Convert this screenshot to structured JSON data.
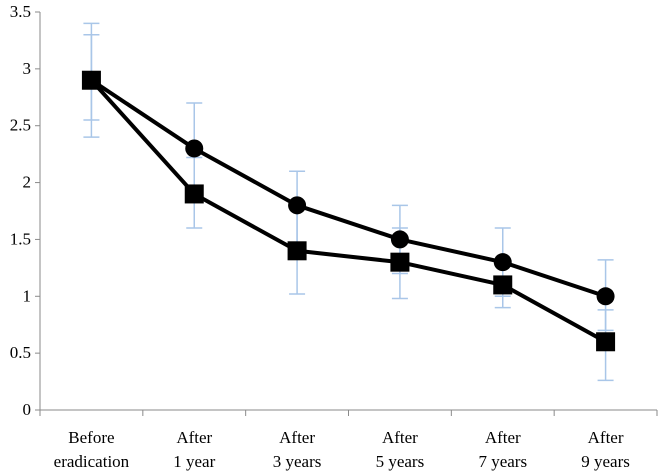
{
  "chart_data": {
    "type": "line",
    "categories": [
      [
        "Before",
        "eradication"
      ],
      [
        "After",
        "1 year"
      ],
      [
        "After",
        "3 years"
      ],
      [
        "After",
        "5 years"
      ],
      [
        "After",
        "7 years"
      ],
      [
        "After",
        "9 years"
      ]
    ],
    "ylim": [
      0,
      3.5
    ],
    "yticks": [
      0,
      0.5,
      1,
      1.5,
      2,
      2.5,
      3,
      3.5
    ],
    "ytick_labels": [
      "0",
      "0.5",
      "1",
      "1.5",
      "2",
      "2.5",
      "3",
      "3.5"
    ],
    "title": "",
    "xlabel": "",
    "ylabel": "",
    "grid": false,
    "legend": "none",
    "series": [
      {
        "marker": "circle",
        "values": [
          2.9,
          2.3,
          1.8,
          1.5,
          1.3,
          1.0
        ],
        "error_low": [
          2.4,
          1.9,
          1.4,
          1.2,
          1.0,
          0.7
        ],
        "error_high": [
          3.4,
          2.7,
          2.1,
          1.8,
          1.6,
          1.32
        ]
      },
      {
        "marker": "square",
        "values": [
          2.9,
          1.9,
          1.4,
          1.3,
          1.1,
          0.6
        ],
        "error_low": [
          2.55,
          1.6,
          1.02,
          0.98,
          0.9,
          0.26
        ],
        "error_high": [
          3.3,
          2.22,
          1.8,
          1.6,
          1.3,
          0.88
        ]
      }
    ],
    "colors": {
      "line": "#000000",
      "error_bar": "#a9c6e8",
      "axis": "#8a8a8a"
    }
  }
}
